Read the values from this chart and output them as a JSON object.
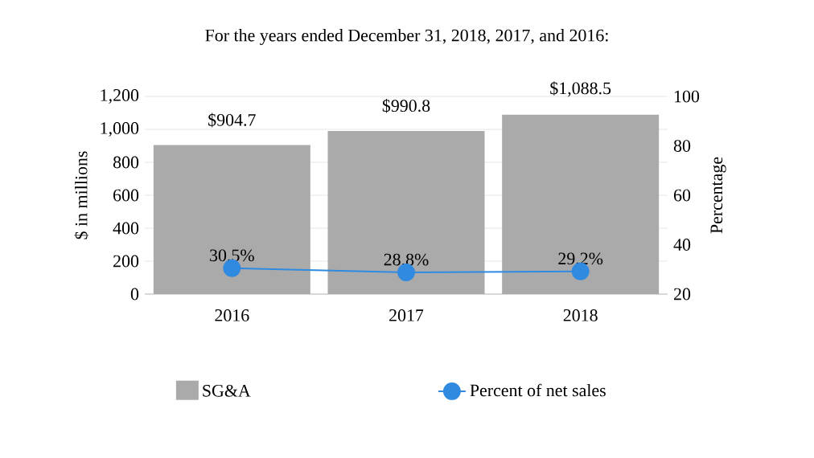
{
  "chart_data": {
    "type": "bar",
    "title": "For the years ended December 31, 2018, 2017, and 2016:",
    "ylabel": "$ in millions",
    "y2label": "Percentage",
    "categories": [
      "2016",
      "2017",
      "2018"
    ],
    "series": [
      {
        "name": "SG&A",
        "color": "#aaaaaa",
        "values": [
          904.7,
          990.8,
          1088.5
        ],
        "value_labels": [
          "$904.7",
          "$990.8",
          "$1,088.5"
        ]
      },
      {
        "name": "Percent of net sales",
        "type": "line",
        "axis": "y2",
        "color": "#2f8ae0",
        "marker": "circle",
        "values": [
          30.5,
          28.8,
          29.2
        ],
        "value_labels": [
          "30.5%",
          "28.8%",
          "29.2%"
        ]
      }
    ],
    "ylim": [
      0,
      1200
    ],
    "yticks": [
      0,
      {
        "value": 200,
        "label": "200"
      },
      400,
      600,
      800,
      {
        "value": 1000,
        "label": "1,000"
      },
      {
        "value": 1200,
        "label": "1,200"
      }
    ],
    "y2lim": [
      20,
      100
    ],
    "y2ticks": [
      20,
      40,
      60,
      80,
      100
    ],
    "grid": "y",
    "legend": "bottom"
  }
}
